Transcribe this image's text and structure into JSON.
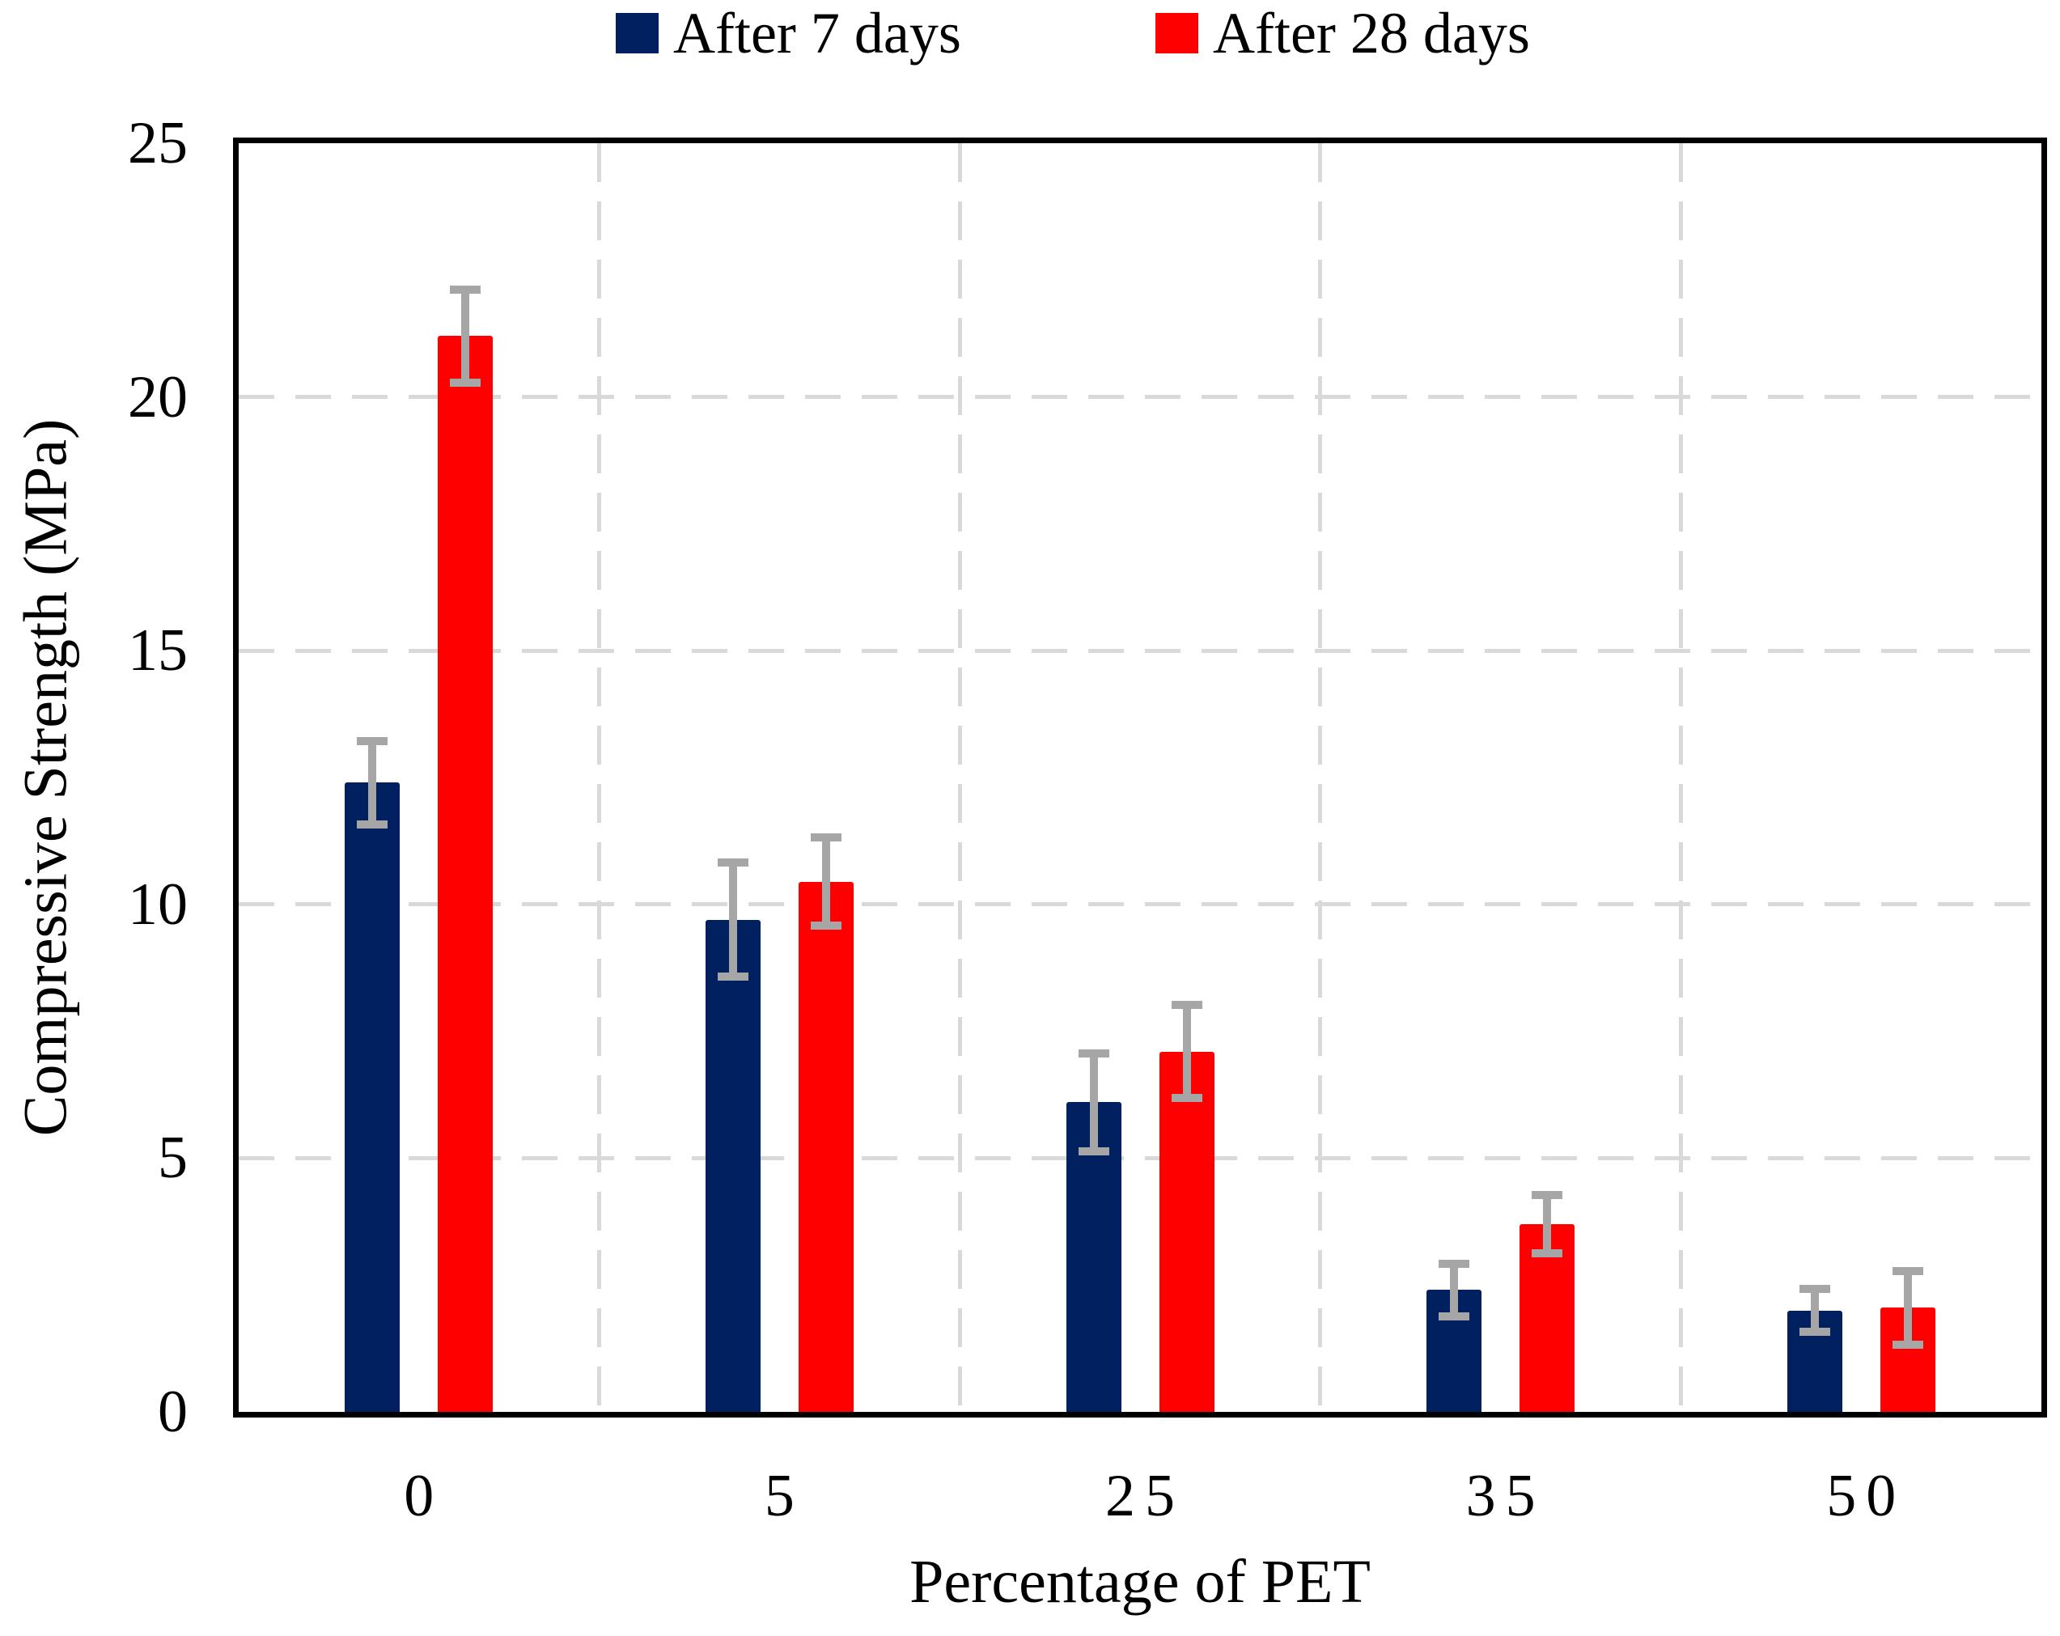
{
  "chart_data": {
    "type": "bar",
    "title": "",
    "categories": [
      "0",
      "5",
      "25",
      "35",
      "50"
    ],
    "series": [
      {
        "name": "After 7 days",
        "color": "#002060",
        "values": [
          12.4,
          9.7,
          6.1,
          2.4,
          2.0
        ],
        "errors": [
          0.9,
          1.2,
          1.05,
          0.6,
          0.5
        ]
      },
      {
        "name": "After 28 days",
        "color": "#ff0000",
        "values": [
          21.2,
          10.45,
          7.1,
          3.7,
          2.05
        ],
        "errors": [
          1.0,
          0.95,
          1.0,
          0.65,
          0.8
        ]
      }
    ],
    "xlabel": "Percentage of PET",
    "ylabel": "Compressive Strength (MPa)",
    "ylim": [
      0,
      25
    ],
    "yticks": [
      0,
      5,
      10,
      15,
      20,
      25
    ],
    "grid": "dashed-horizontal-and-vertical",
    "gridline_color": "#d9d9d9",
    "error_bar_color": "#a6a6a6",
    "legend_position": "top",
    "axis_frame_color": "#000000"
  }
}
